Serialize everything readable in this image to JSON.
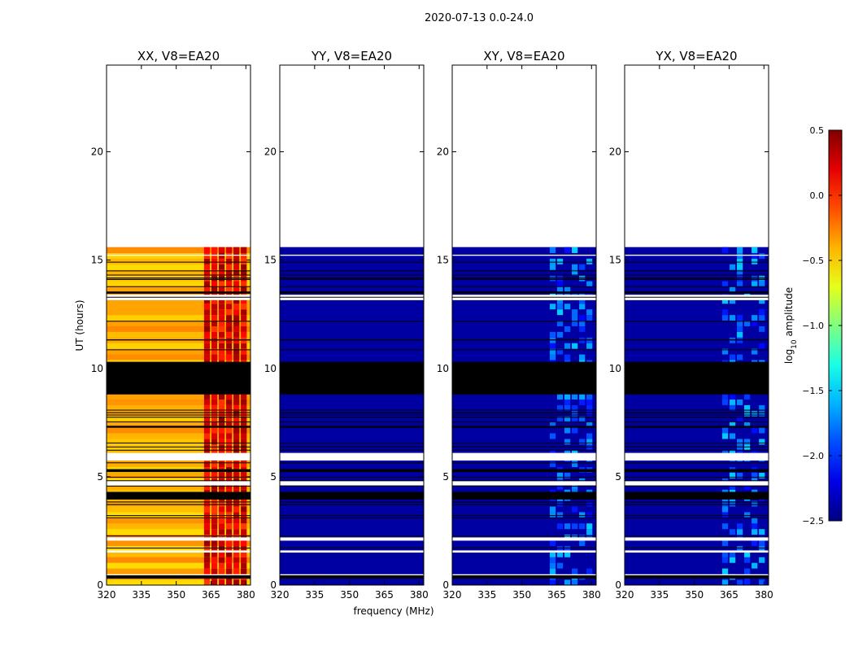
{
  "figure_title": "2020-07-13 0.0-24.0",
  "xlabel": "frequency (MHz)",
  "ylabel": "UT (hours)",
  "colorbar": {
    "label_prefix": "log",
    "label_sub": "10",
    "label_suffix": " amplitude",
    "ticks": [
      "0.5",
      "0.0",
      "−0.5",
      "−1.0",
      "−1.5",
      "−2.0",
      "−2.5"
    ],
    "range": [
      -2.5,
      0.5
    ],
    "colormap": "jet"
  },
  "chart_data": [
    {
      "type": "heatmap",
      "title": "XX, V8=EA20",
      "xlim": [
        320,
        382
      ],
      "ylim": [
        0,
        24
      ],
      "x_ticks": [
        "320",
        "335",
        "350",
        "365",
        "380"
      ],
      "y_ticks": [
        "0",
        "5",
        "10",
        "15",
        "20"
      ],
      "data_end_hours": 15.6,
      "typical_log_amplitude": -0.4,
      "rfi_band_MHz": [
        362,
        381
      ],
      "rfi_log_amplitude": 0.2
    },
    {
      "type": "heatmap",
      "title": "YY, V8=EA20",
      "xlim": [
        320,
        382
      ],
      "ylim": [
        0,
        24
      ],
      "x_ticks": [
        "320",
        "335",
        "350",
        "365",
        "380"
      ],
      "y_ticks": [
        "0",
        "5",
        "10",
        "15",
        "20"
      ],
      "data_end_hours": 15.6,
      "typical_log_amplitude": -2.4
    },
    {
      "type": "heatmap",
      "title": "XY, V8=EA20",
      "xlim": [
        320,
        382
      ],
      "ylim": [
        0,
        24
      ],
      "x_ticks": [
        "320",
        "335",
        "350",
        "365",
        "380"
      ],
      "y_ticks": [
        "0",
        "5",
        "10",
        "15",
        "20"
      ],
      "data_end_hours": 15.6,
      "typical_log_amplitude": -2.4,
      "rfi_band_MHz": [
        362,
        381
      ],
      "rfi_log_amplitude": -1.5
    },
    {
      "type": "heatmap",
      "title": "YX, V8=EA20",
      "xlim": [
        320,
        382
      ],
      "ylim": [
        0,
        24
      ],
      "x_ticks": [
        "320",
        "335",
        "350",
        "365",
        "380"
      ],
      "y_ticks": [
        "0",
        "5",
        "10",
        "15",
        "20"
      ],
      "data_end_hours": 15.6,
      "typical_log_amplitude": -2.4,
      "rfi_band_MHz": [
        362,
        381
      ],
      "rfi_log_amplitude": -1.5
    }
  ]
}
